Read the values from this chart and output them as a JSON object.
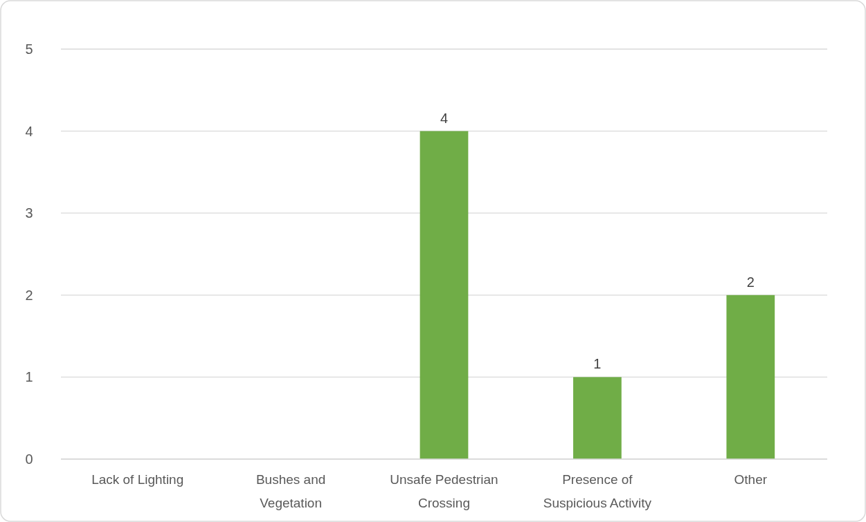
{
  "chart_data": {
    "type": "bar",
    "categories": [
      "Lack of Lighting",
      "Bushes and Vegetation",
      "Unsafe Pedestrian Crossing",
      "Presence of Suspicious Activity",
      "Other"
    ],
    "values": [
      0,
      0,
      4,
      1,
      2
    ],
    "color": "#70ad47",
    "value_labels": [
      null,
      null,
      "4",
      "1",
      "2"
    ],
    "ylim": [
      0,
      5
    ],
    "yticks": [
      0,
      1,
      2,
      3,
      4,
      5
    ],
    "grid": "y"
  }
}
